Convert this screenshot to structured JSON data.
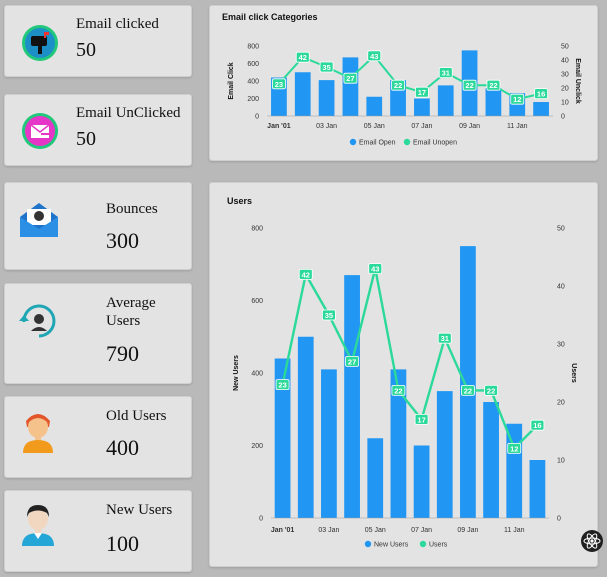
{
  "colors": {
    "bar": "#2196f3",
    "line": "#2bd99a",
    "card": "#e3e3e3",
    "bg": "#b9b9b9"
  },
  "stats": [
    {
      "title": "Email clicked",
      "value": "50",
      "icon": "mailbox-icon"
    },
    {
      "title": "Email UnClicked",
      "value": "50",
      "icon": "mail-open-icon"
    },
    {
      "title": "Bounces",
      "value": "300",
      "icon": "bounce-mail-icon"
    },
    {
      "title": "Average Users",
      "value": "790",
      "icon": "user-refresh-icon"
    },
    {
      "title": "Old Users",
      "value": "400",
      "icon": "old-user-icon"
    },
    {
      "title": "New Users",
      "value": "100",
      "icon": "new-user-icon"
    }
  ],
  "chart_data": [
    {
      "type": "bar",
      "title": "Email click Categories",
      "ylabel": "Email Click",
      "y2label": "Email Unclick",
      "ylim": [
        0,
        800
      ],
      "y2lim": [
        0,
        50
      ],
      "yticks": [
        "0",
        "200",
        "400",
        "600",
        "800"
      ],
      "y2ticks": [
        "0",
        "10",
        "20",
        "30",
        "40",
        "50"
      ],
      "xticks": [
        "Jan '01",
        "03 Jan",
        "05 Jan",
        "07 Jan",
        "09 Jan",
        "11 Jan"
      ],
      "series": [
        {
          "name": "Email Open",
          "kind": "bar",
          "values": [
            440,
            500,
            410,
            670,
            220,
            410,
            200,
            350,
            750,
            320,
            260,
            160
          ]
        },
        {
          "name": "Email Unopen",
          "kind": "line",
          "values": [
            23,
            42,
            35,
            27,
            43,
            22,
            17,
            31,
            22,
            22,
            12,
            16
          ]
        }
      ]
    },
    {
      "type": "bar",
      "title": "Users",
      "ylabel": "New Users",
      "y2label": "Users",
      "ylim": [
        0,
        800
      ],
      "y2lim": [
        0,
        50
      ],
      "yticks": [
        "0",
        "200",
        "400",
        "600",
        "800"
      ],
      "y2ticks": [
        "0",
        "10",
        "20",
        "30",
        "40",
        "50"
      ],
      "xticks": [
        "Jan '01",
        "03 Jan",
        "05 Jan",
        "07 Jan",
        "09 Jan",
        "11 Jan"
      ],
      "series": [
        {
          "name": "New Users",
          "kind": "bar",
          "values": [
            440,
            500,
            410,
            670,
            220,
            410,
            200,
            350,
            750,
            320,
            260,
            160
          ]
        },
        {
          "name": "Users",
          "kind": "line",
          "values": [
            23,
            42,
            35,
            27,
            43,
            22,
            17,
            31,
            22,
            22,
            12,
            16
          ]
        }
      ]
    }
  ]
}
